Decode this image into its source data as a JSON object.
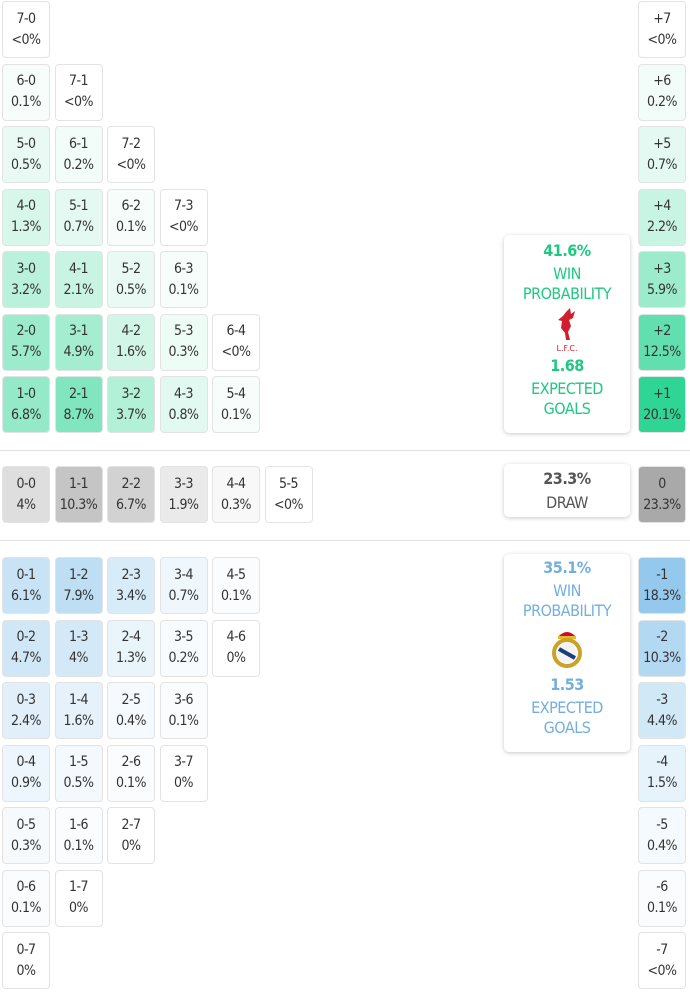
{
  "colors": {
    "home": "#2fd595",
    "away": "#8ec5ec",
    "draw": "#a9a9a9"
  },
  "home_grid": [
    [
      {
        "s": "7-0",
        "p": "<0%"
      }
    ],
    [
      {
        "s": "6-0",
        "p": "0.1%"
      },
      {
        "s": "7-1",
        "p": "<0%"
      }
    ],
    [
      {
        "s": "5-0",
        "p": "0.5%"
      },
      {
        "s": "6-1",
        "p": "0.2%"
      },
      {
        "s": "7-2",
        "p": "<0%"
      }
    ],
    [
      {
        "s": "4-0",
        "p": "1.3%"
      },
      {
        "s": "5-1",
        "p": "0.7%"
      },
      {
        "s": "6-2",
        "p": "0.1%"
      },
      {
        "s": "7-3",
        "p": "<0%"
      }
    ],
    [
      {
        "s": "3-0",
        "p": "3.2%"
      },
      {
        "s": "4-1",
        "p": "2.1%"
      },
      {
        "s": "5-2",
        "p": "0.5%"
      },
      {
        "s": "6-3",
        "p": "0.1%"
      }
    ],
    [
      {
        "s": "2-0",
        "p": "5.7%"
      },
      {
        "s": "3-1",
        "p": "4.9%"
      },
      {
        "s": "4-2",
        "p": "1.6%"
      },
      {
        "s": "5-3",
        "p": "0.3%"
      },
      {
        "s": "6-4",
        "p": "<0%"
      }
    ],
    [
      {
        "s": "1-0",
        "p": "6.8%"
      },
      {
        "s": "2-1",
        "p": "8.7%"
      },
      {
        "s": "3-2",
        "p": "3.7%"
      },
      {
        "s": "4-3",
        "p": "0.8%"
      },
      {
        "s": "5-4",
        "p": "0.1%"
      }
    ]
  ],
  "draw_row": [
    {
      "s": "0-0",
      "p": "4%"
    },
    {
      "s": "1-1",
      "p": "10.3%"
    },
    {
      "s": "2-2",
      "p": "6.7%"
    },
    {
      "s": "3-3",
      "p": "1.9%"
    },
    {
      "s": "4-4",
      "p": "0.3%"
    },
    {
      "s": "5-5",
      "p": "<0%"
    }
  ],
  "away_grid": [
    [
      {
        "s": "0-1",
        "p": "6.1%"
      },
      {
        "s": "1-2",
        "p": "7.9%"
      },
      {
        "s": "2-3",
        "p": "3.4%"
      },
      {
        "s": "3-4",
        "p": "0.7%"
      },
      {
        "s": "4-5",
        "p": "0.1%"
      }
    ],
    [
      {
        "s": "0-2",
        "p": "4.7%"
      },
      {
        "s": "1-3",
        "p": "4%"
      },
      {
        "s": "2-4",
        "p": "1.3%"
      },
      {
        "s": "3-5",
        "p": "0.2%"
      },
      {
        "s": "4-6",
        "p": "0%"
      }
    ],
    [
      {
        "s": "0-3",
        "p": "2.4%"
      },
      {
        "s": "1-4",
        "p": "1.6%"
      },
      {
        "s": "2-5",
        "p": "0.4%"
      },
      {
        "s": "3-6",
        "p": "0.1%"
      }
    ],
    [
      {
        "s": "0-4",
        "p": "0.9%"
      },
      {
        "s": "1-5",
        "p": "0.5%"
      },
      {
        "s": "2-6",
        "p": "0.1%"
      },
      {
        "s": "3-7",
        "p": "0%"
      }
    ],
    [
      {
        "s": "0-5",
        "p": "0.3%"
      },
      {
        "s": "1-6",
        "p": "0.1%"
      },
      {
        "s": "2-7",
        "p": "0%"
      }
    ],
    [
      {
        "s": "0-6",
        "p": "0.1%"
      },
      {
        "s": "1-7",
        "p": "0%"
      }
    ],
    [
      {
        "s": "0-7",
        "p": "0%"
      }
    ]
  ],
  "margins_home": [
    {
      "s": "+7",
      "p": "<0%"
    },
    {
      "s": "+6",
      "p": "0.2%"
    },
    {
      "s": "+5",
      "p": "0.7%"
    },
    {
      "s": "+4",
      "p": "2.2%"
    },
    {
      "s": "+3",
      "p": "5.9%"
    },
    {
      "s": "+2",
      "p": "12.5%"
    },
    {
      "s": "+1",
      "p": "20.1%"
    }
  ],
  "margin_draw": {
    "s": "0",
    "p": "23.3%"
  },
  "margins_away": [
    {
      "s": "-1",
      "p": "18.3%"
    },
    {
      "s": "-2",
      "p": "10.3%"
    },
    {
      "s": "-3",
      "p": "4.4%"
    },
    {
      "s": "-4",
      "p": "1.5%"
    },
    {
      "s": "-5",
      "p": "0.4%"
    },
    {
      "s": "-6",
      "p": "0.1%"
    },
    {
      "s": "-7",
      "p": "<0%"
    }
  ],
  "home_card": {
    "win_pct": "41.6%",
    "win_label_1": "WIN",
    "win_label_2": "PROBABILITY",
    "logo_text": "L.F.C.",
    "xg": "1.68",
    "xg_label_1": "EXPECTED",
    "xg_label_2": "GOALS"
  },
  "draw_card": {
    "pct": "23.3%",
    "label": "DRAW"
  },
  "away_card": {
    "win_pct": "35.1%",
    "win_label_1": "WIN",
    "win_label_2": "PROBABILITY",
    "xg": "1.53",
    "xg_label_1": "EXPECTED",
    "xg_label_2": "GOALS"
  }
}
